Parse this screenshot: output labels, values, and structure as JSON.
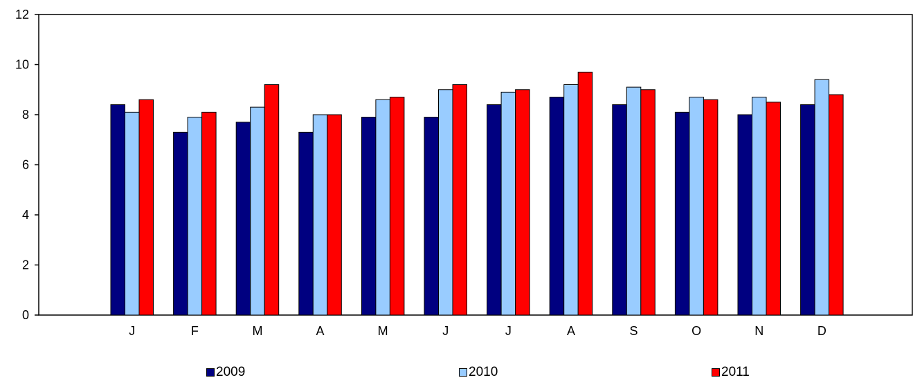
{
  "chart_data": {
    "type": "bar",
    "categories": [
      "J",
      "F",
      "M",
      "A",
      "M",
      "J",
      "J",
      "A",
      "S",
      "O",
      "N",
      "D"
    ],
    "series": [
      {
        "name": "2009",
        "color": "#000080",
        "values": [
          8.4,
          7.3,
          7.7,
          7.3,
          7.9,
          7.9,
          8.4,
          8.7,
          8.4,
          8.1,
          8.0,
          8.4
        ]
      },
      {
        "name": "2010",
        "color": "#99ccff",
        "values": [
          8.1,
          7.9,
          8.3,
          8.0,
          8.6,
          9.0,
          8.9,
          9.2,
          9.1,
          8.7,
          8.7,
          9.4
        ]
      },
      {
        "name": "2011",
        "color": "#ff0000",
        "values": [
          8.6,
          8.1,
          9.2,
          8.0,
          8.7,
          9.2,
          9.0,
          9.7,
          9.0,
          8.6,
          8.5,
          8.8
        ]
      }
    ],
    "y_ticks": [
      "0",
      "2",
      "4",
      "6",
      "8",
      "10",
      "12"
    ],
    "ylim": [
      0,
      12
    ],
    "xlabel": "",
    "ylabel": "",
    "grid": false,
    "legend_position": "bottom"
  }
}
